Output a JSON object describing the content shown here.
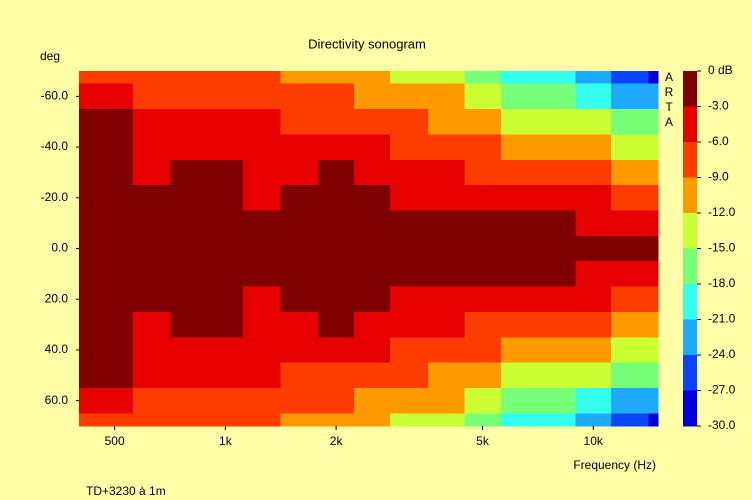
{
  "chart_data": {
    "type": "heatmap",
    "title": "Directivity sonogram",
    "y_label": "deg",
    "x_label": "Frequency (Hz)",
    "footer": "TD+3230 à 1m",
    "watermark": "ARTA",
    "x": [
      400,
      500,
      630,
      800,
      1000,
      1250,
      1600,
      2000,
      2500,
      3150,
      4000,
      5000,
      6300,
      8000,
      10000,
      12500,
      16000
    ],
    "y": [
      -70,
      -60,
      -50,
      -40,
      -30,
      -20,
      -10,
      0,
      10,
      20,
      30,
      40,
      50,
      60,
      70
    ],
    "z": [
      [
        -7,
        -6.5,
        -7.5,
        -7.5,
        -8,
        -8.5,
        -9.5,
        -10,
        -11,
        -12.5,
        -14,
        -16,
        -18,
        -20,
        -22.5,
        -25,
        -27
      ],
      [
        -5,
        -4.5,
        -6.5,
        -6,
        -6.5,
        -7,
        -7.5,
        -8,
        -9,
        -10,
        -11.5,
        -13,
        -15,
        -17,
        -19,
        -21,
        -23
      ],
      [
        -2.8,
        -2.8,
        -5.5,
        -5,
        -5.5,
        -5.5,
        -6,
        -6,
        -7,
        -8,
        -9,
        -10,
        -12,
        -13,
        -14.5,
        -16,
        -17.5
      ],
      [
        -2,
        -2,
        -5,
        -4,
        -4.5,
        -5,
        -5,
        -4.5,
        -5.5,
        -6.5,
        -7,
        -8,
        -9,
        -10,
        -11,
        -12,
        -13
      ],
      [
        -1.5,
        -1.5,
        -4,
        -2.5,
        -2.8,
        -4.5,
        -3.5,
        -2.8,
        -4,
        -5,
        -5.5,
        -6,
        -7,
        -7.5,
        -8,
        -9,
        -9.5
      ],
      [
        -1,
        -1,
        -2.8,
        -1.5,
        -1.5,
        -3.5,
        -2,
        -1.5,
        -2.5,
        -3.5,
        -3.5,
        -4,
        -4.5,
        -5,
        -5.5,
        -6,
        -6.5
      ],
      [
        -0.5,
        -0.5,
        -1,
        -0.5,
        -0.5,
        -1,
        -0.5,
        -0.5,
        -1,
        -1.5,
        -1.5,
        -2,
        -2.5,
        -2.5,
        -3,
        -3.5,
        -3.5
      ],
      [
        0,
        0,
        0,
        0,
        0,
        0,
        0,
        0,
        0,
        0,
        0,
        0,
        0,
        0,
        0,
        0,
        0
      ],
      [
        -0.5,
        -0.5,
        -1,
        -0.5,
        -0.5,
        -1,
        -0.5,
        -0.5,
        -1,
        -1.5,
        -1.5,
        -2,
        -2.5,
        -2.5,
        -3,
        -3.5,
        -3.5
      ],
      [
        -1,
        -1,
        -2.8,
        -1.5,
        -1.5,
        -3.5,
        -2,
        -1.5,
        -2.5,
        -3.5,
        -3.5,
        -4,
        -4.5,
        -5,
        -5.5,
        -6,
        -6.5
      ],
      [
        -1.5,
        -1.5,
        -4,
        -2.5,
        -2.8,
        -4.5,
        -3.5,
        -2.8,
        -4,
        -5,
        -5.5,
        -6,
        -7,
        -7.5,
        -8,
        -9,
        -9.5
      ],
      [
        -2,
        -2,
        -5,
        -4,
        -4.5,
        -5,
        -5,
        -4.5,
        -5.5,
        -6.5,
        -7,
        -8,
        -9,
        -10,
        -11,
        -12,
        -13
      ],
      [
        -2.8,
        -2.8,
        -5.5,
        -5,
        -5.5,
        -5.5,
        -6,
        -6,
        -7,
        -8,
        -9,
        -10,
        -12,
        -13,
        -14.5,
        -16,
        -17.5
      ],
      [
        -5,
        -4.5,
        -6.5,
        -6,
        -6.5,
        -7,
        -7.5,
        -8,
        -9,
        -10,
        -11.5,
        -13,
        -15,
        -17,
        -19,
        -21,
        -23
      ],
      [
        -7,
        -6.5,
        -7.5,
        -7.5,
        -8,
        -8.5,
        -9.5,
        -10,
        -11,
        -12.5,
        -14,
        -16,
        -18,
        -20,
        -22.5,
        -25,
        -27
      ]
    ],
    "xlim": [
      400,
      15000
    ],
    "x_log": true,
    "xticks": [
      500,
      {
        "value": 1000,
        "label": "1k"
      },
      {
        "value": 2000,
        "label": "2k"
      },
      {
        "value": 5000,
        "label": "5k"
      },
      {
        "value": 10000,
        "label": "10k"
      }
    ],
    "ylim": [
      -70,
      70
    ],
    "y_inverted": true,
    "yticks": [
      {
        "value": -60,
        "label": "-60.0"
      },
      {
        "value": -40,
        "label": "-40.0"
      },
      {
        "value": -20,
        "label": "-20.0"
      },
      {
        "value": 0,
        "label": "0.0"
      },
      {
        "value": 20,
        "label": "20.0"
      },
      {
        "value": 40,
        "label": "40.0"
      },
      {
        "value": 60,
        "label": "60.0"
      }
    ],
    "zlim": [
      -30,
      0
    ],
    "zticks": [
      {
        "value": 0,
        "label": "0 dB"
      },
      {
        "value": -3,
        "label": "-3.0"
      },
      {
        "value": -6,
        "label": "-6.0"
      },
      {
        "value": -9,
        "label": "-9.0"
      },
      {
        "value": -12,
        "label": "-12.0"
      },
      {
        "value": -15,
        "label": "-15.0"
      },
      {
        "value": -18,
        "label": "-18.0"
      },
      {
        "value": -21,
        "label": "-21.0"
      },
      {
        "value": -24,
        "label": "-24.0"
      },
      {
        "value": -27,
        "label": "-27.0"
      },
      {
        "value": -30,
        "label": "-30.0"
      }
    ],
    "colors": [
      "#7f0000",
      "#e60000",
      "#ff3c00",
      "#ff9900",
      "#ccff33",
      "#77ff77",
      "#33ffee",
      "#1eaaff",
      "#0a44ff",
      "#0000dd"
    ]
  }
}
